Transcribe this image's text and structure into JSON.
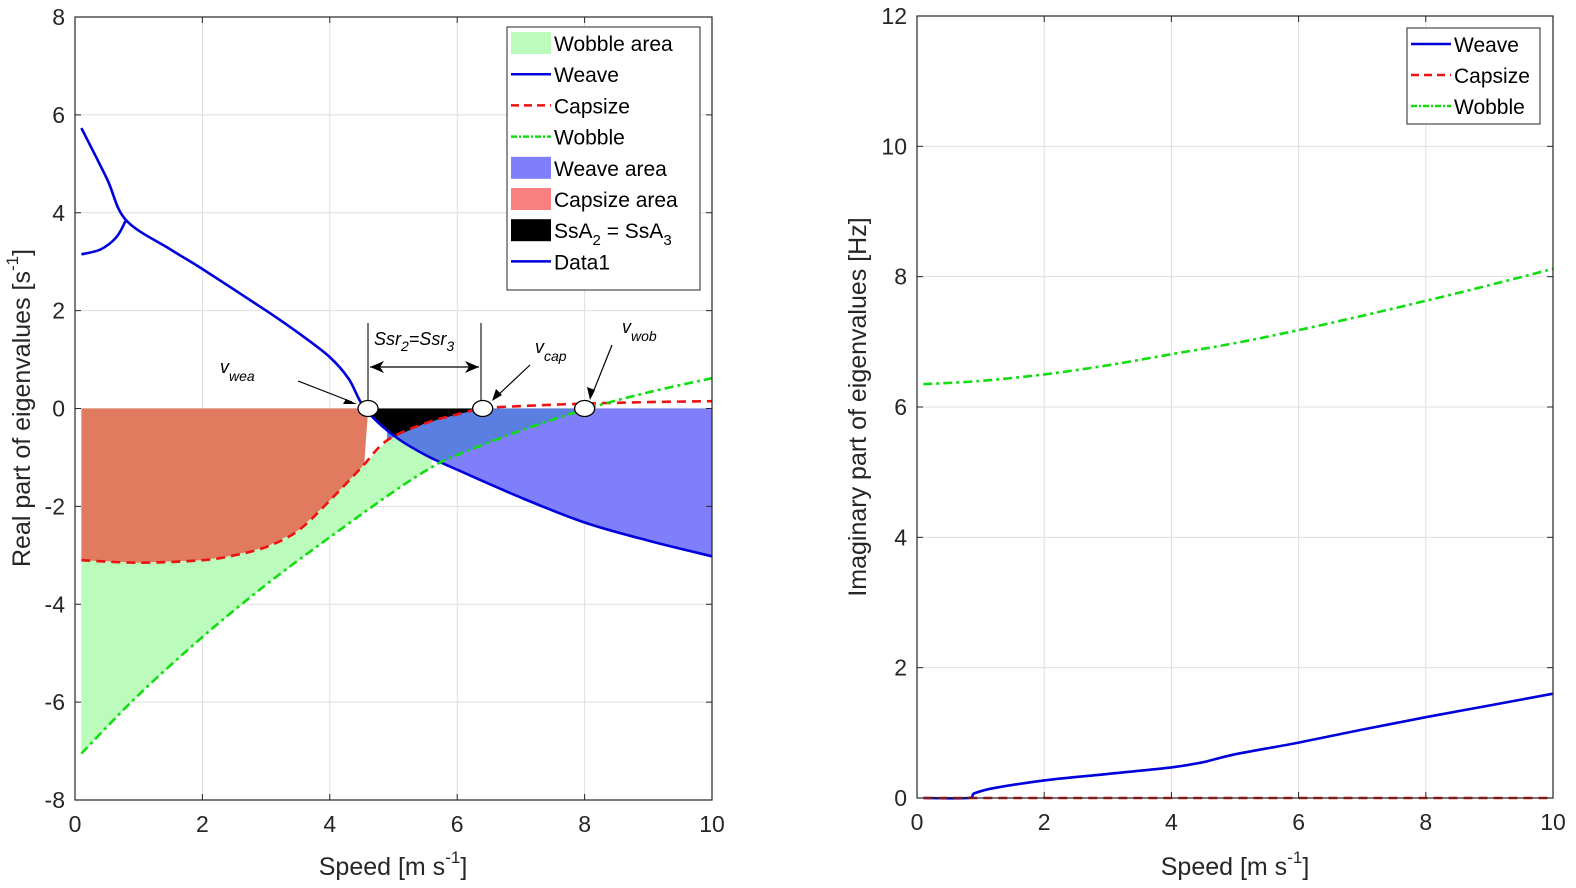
{
  "chart_data": [
    {
      "type": "area",
      "id": "real",
      "title": "",
      "xlabel": "Speed [m s",
      "xlabel_sup": "-1",
      "xlabel_end": "]",
      "ylabel": "Real part of eigenvalues [s",
      "ylabel_sup": "-1",
      "ylabel_end": "]",
      "xlim": [
        0,
        10
      ],
      "ylim": [
        -8,
        8
      ],
      "xticks": [
        0,
        2,
        4,
        6,
        8,
        10
      ],
      "yticks": [
        -8,
        -6,
        -4,
        -2,
        0,
        2,
        4,
        6,
        8
      ],
      "grid": true,
      "legend_position": "top-right",
      "legend": [
        {
          "label": "Wobble area",
          "kind": "patch",
          "color": "#bbfbbb"
        },
        {
          "label": "Weave",
          "kind": "line",
          "color": "#0000dd",
          "dash": "solid"
        },
        {
          "label": "Capsize",
          "kind": "line",
          "color": "#ee1111",
          "dash": "dashed"
        },
        {
          "label": "Wobble",
          "kind": "line",
          "color": "#11dd11",
          "dash": "dashdot"
        },
        {
          "label": "Weave area",
          "kind": "patch",
          "color": "#7f7ffb"
        },
        {
          "label": "Capsize area",
          "kind": "patch",
          "color": "#f88080"
        },
        {
          "label": "SsA",
          "label_sub": "2",
          "label_rest": " = SsA",
          "label_sub2": "3",
          "kind": "patch",
          "color": "#000000"
        },
        {
          "label": "Data1",
          "kind": "line",
          "color": "#0000dd",
          "dash": "solid"
        }
      ],
      "series": [
        {
          "name": "Weave",
          "color": "#0000dd",
          "dash": "solid",
          "x": [
            0.1,
            0.5,
            0.8,
            1.5,
            2,
            3,
            3.5,
            4,
            4.3,
            4.55,
            5,
            5.5,
            6,
            7,
            8,
            9,
            10
          ],
          "y": [
            5.73,
            4.7,
            3.85,
            3.25,
            2.85,
            2.0,
            1.55,
            1.05,
            0.6,
            0.0,
            -0.55,
            -0.95,
            -1.25,
            -1.82,
            -2.33,
            -2.7,
            -3.02
          ]
        },
        {
          "name": "Weave (lower branch)",
          "color": "#0000dd",
          "dash": "solid",
          "x": [
            0.1,
            0.4,
            0.65,
            0.8
          ],
          "y": [
            3.15,
            3.25,
            3.5,
            3.85
          ]
        },
        {
          "name": "Capsize",
          "color": "#ee1111",
          "dash": "dashed",
          "x": [
            0.1,
            1,
            2,
            2.5,
            3,
            3.5,
            4,
            4.5,
            4.9,
            5.5,
            6,
            6.4,
            7,
            8,
            9,
            10
          ],
          "y": [
            -3.1,
            -3.15,
            -3.1,
            -3.0,
            -2.83,
            -2.5,
            -1.88,
            -1.2,
            -0.65,
            -0.3,
            -0.12,
            0.0,
            0.05,
            0.1,
            0.13,
            0.15
          ]
        },
        {
          "name": "Wobble",
          "color": "#11dd11",
          "dash": "dashdot",
          "x": [
            0.1,
            1,
            2,
            3,
            4,
            5,
            5.6,
            6,
            7,
            8.05,
            9,
            10
          ],
          "y": [
            -7.05,
            -5.85,
            -4.67,
            -3.6,
            -2.63,
            -1.7,
            -1.2,
            -0.95,
            -0.45,
            0.0,
            0.33,
            0.62
          ]
        }
      ],
      "areas": [
        {
          "name": "Capsize area",
          "color": "#e07b60",
          "between": [
            "Capsize",
            "zero"
          ],
          "x_range": [
            0.1,
            4.9
          ]
        },
        {
          "name": "Wobble area",
          "color": "#bbfbbb",
          "between": [
            "Wobble",
            "Capsize"
          ],
          "x_range": [
            0.1,
            5.6
          ]
        },
        {
          "name": "Weave area",
          "color": "#7f7ffb",
          "between": [
            "Weave",
            "zero"
          ],
          "x_range": [
            4.9,
            10
          ]
        },
        {
          "name": "SsA2 = SsA3",
          "color": "#000000",
          "between": [
            "Capsize",
            "zero"
          ],
          "x_range": [
            4.55,
            6.4
          ]
        }
      ],
      "markers": [
        {
          "name": "v_wea",
          "x": 4.6,
          "y": 0
        },
        {
          "name": "v_cap",
          "x": 6.4,
          "y": 0
        },
        {
          "name": "v_wob",
          "x": 8.0,
          "y": 0
        }
      ],
      "annotations": {
        "v_wea": {
          "main": "v",
          "sub": "wea"
        },
        "v_cap": {
          "main": "v",
          "sub": "cap"
        },
        "v_wob": {
          "main": "v",
          "sub": "wob"
        },
        "ssr": {
          "a": "Ssr",
          "a_sub": "2",
          "eq": "=Ssr",
          "b_sub": "3"
        }
      }
    },
    {
      "type": "line",
      "id": "imag",
      "title": "",
      "xlabel": "Speed [m s",
      "xlabel_sup": "-1",
      "xlabel_end": "]",
      "ylabel": "Imaginary part of eigenvalues [Hz]",
      "xlim": [
        0,
        10
      ],
      "ylim": [
        0,
        12
      ],
      "xticks": [
        0,
        2,
        4,
        6,
        8,
        10
      ],
      "yticks": [
        0,
        2,
        4,
        6,
        8,
        10,
        12
      ],
      "grid": true,
      "legend_position": "top-right",
      "legend": [
        {
          "label": "Weave",
          "color": "#0000dd",
          "dash": "solid"
        },
        {
          "label": "Capsize",
          "color": "#ee1111",
          "dash": "dashed"
        },
        {
          "label": "Wobble",
          "color": "#11dd11",
          "dash": "dashdot"
        }
      ],
      "series": [
        {
          "name": "Weave",
          "color": "#0000dd",
          "dash": "solid",
          "x": [
            0.1,
            0.8,
            0.9,
            1.2,
            2,
            3,
            4,
            4.5,
            5,
            6,
            7,
            8,
            9,
            10
          ],
          "y": [
            0,
            0,
            0.07,
            0.15,
            0.27,
            0.37,
            0.47,
            0.55,
            0.67,
            0.85,
            1.05,
            1.24,
            1.42,
            1.6
          ]
        },
        {
          "name": "Capsize",
          "color": "#ee1111",
          "dash": "dashed",
          "x": [
            0.1,
            10
          ],
          "y": [
            0,
            0
          ]
        },
        {
          "name": "Wobble",
          "color": "#11dd11",
          "dash": "dashdot",
          "x": [
            0.1,
            1,
            2,
            3,
            4,
            5,
            6,
            7,
            8,
            9,
            10
          ],
          "y": [
            6.35,
            6.4,
            6.5,
            6.64,
            6.81,
            6.98,
            7.18,
            7.4,
            7.63,
            7.87,
            8.12
          ]
        }
      ]
    }
  ]
}
